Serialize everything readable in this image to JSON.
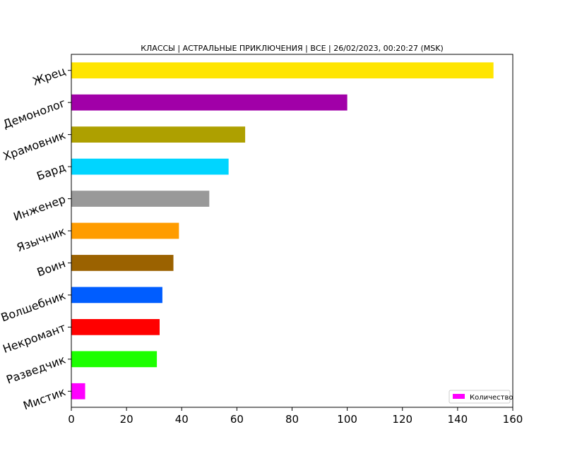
{
  "chart_data": {
    "type": "bar",
    "orientation": "horizontal",
    "title": "КЛАССЫ | АСТРАЛЬНЫЕ ПРИКЛЮЧЕНИЯ | ВСЕ | 26/02/2023, 00:20:27 (MSK)",
    "categories": [
      "Жрец",
      "Демонолог",
      "Храмовник",
      "Бард",
      "Инженер",
      "Язычник",
      "Воин",
      "Волшебник",
      "Некромант",
      "Разведчик",
      "Мистик"
    ],
    "values": [
      153,
      100,
      63,
      57,
      50,
      39,
      37,
      33,
      32,
      31,
      5
    ],
    "colors": [
      "#ffe500",
      "#a100a8",
      "#aea000",
      "#00d5ff",
      "#999999",
      "#ff9c00",
      "#9b6200",
      "#005dff",
      "#ff0000",
      "#1cff00",
      "#ff00ff"
    ],
    "xlim": [
      0,
      160
    ],
    "xticks": [
      0,
      20,
      40,
      60,
      80,
      100,
      120,
      140,
      160
    ],
    "grid": false,
    "legend": {
      "label": "Количество",
      "color": "#ff00ff",
      "placement": "lower-right"
    }
  }
}
